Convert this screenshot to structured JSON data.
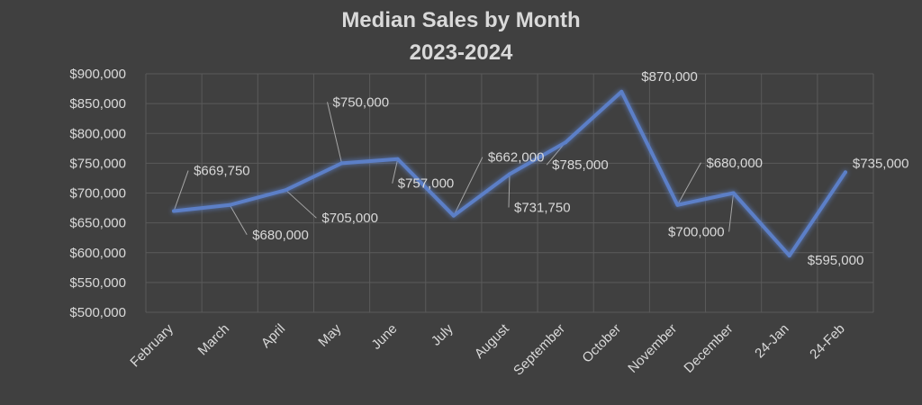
{
  "chart_data": {
    "type": "line",
    "title": "Median Sales by Month",
    "subtitle": "2023-2024",
    "xlabel": "",
    "ylabel": "",
    "categories": [
      "February",
      "March",
      "April",
      "May",
      "June",
      "July",
      "August",
      "September",
      "October",
      "November",
      "December",
      "24-Jan",
      "24-Feb"
    ],
    "series": [
      {
        "values": [
          669750,
          680000,
          705000,
          750000,
          757000,
          662000,
          731750,
          785000,
          870000,
          680000,
          700000,
          595000,
          735000
        ]
      }
    ],
    "data_labels": [
      "$669,750",
      "$680,000",
      "$705,000",
      "$750,000",
      "$757,000",
      "$662,000",
      "$731,750",
      "$785,000",
      "$870,000",
      "$680,000",
      "$700,000",
      "$595,000",
      "$735,000"
    ],
    "ylim": [
      500000,
      900000
    ],
    "yticks": [
      500000,
      550000,
      600000,
      650000,
      700000,
      750000,
      800000,
      850000,
      900000
    ],
    "ytick_labels": [
      "$500,000",
      "$550,000",
      "$600,000",
      "$650,000",
      "$700,000",
      "$750,000",
      "$800,000",
      "$850,000",
      "$900,000"
    ],
    "grid": true,
    "line_color": "#5b7fc7",
    "background_color": "#404040",
    "text_color": "#d9d9d9"
  }
}
